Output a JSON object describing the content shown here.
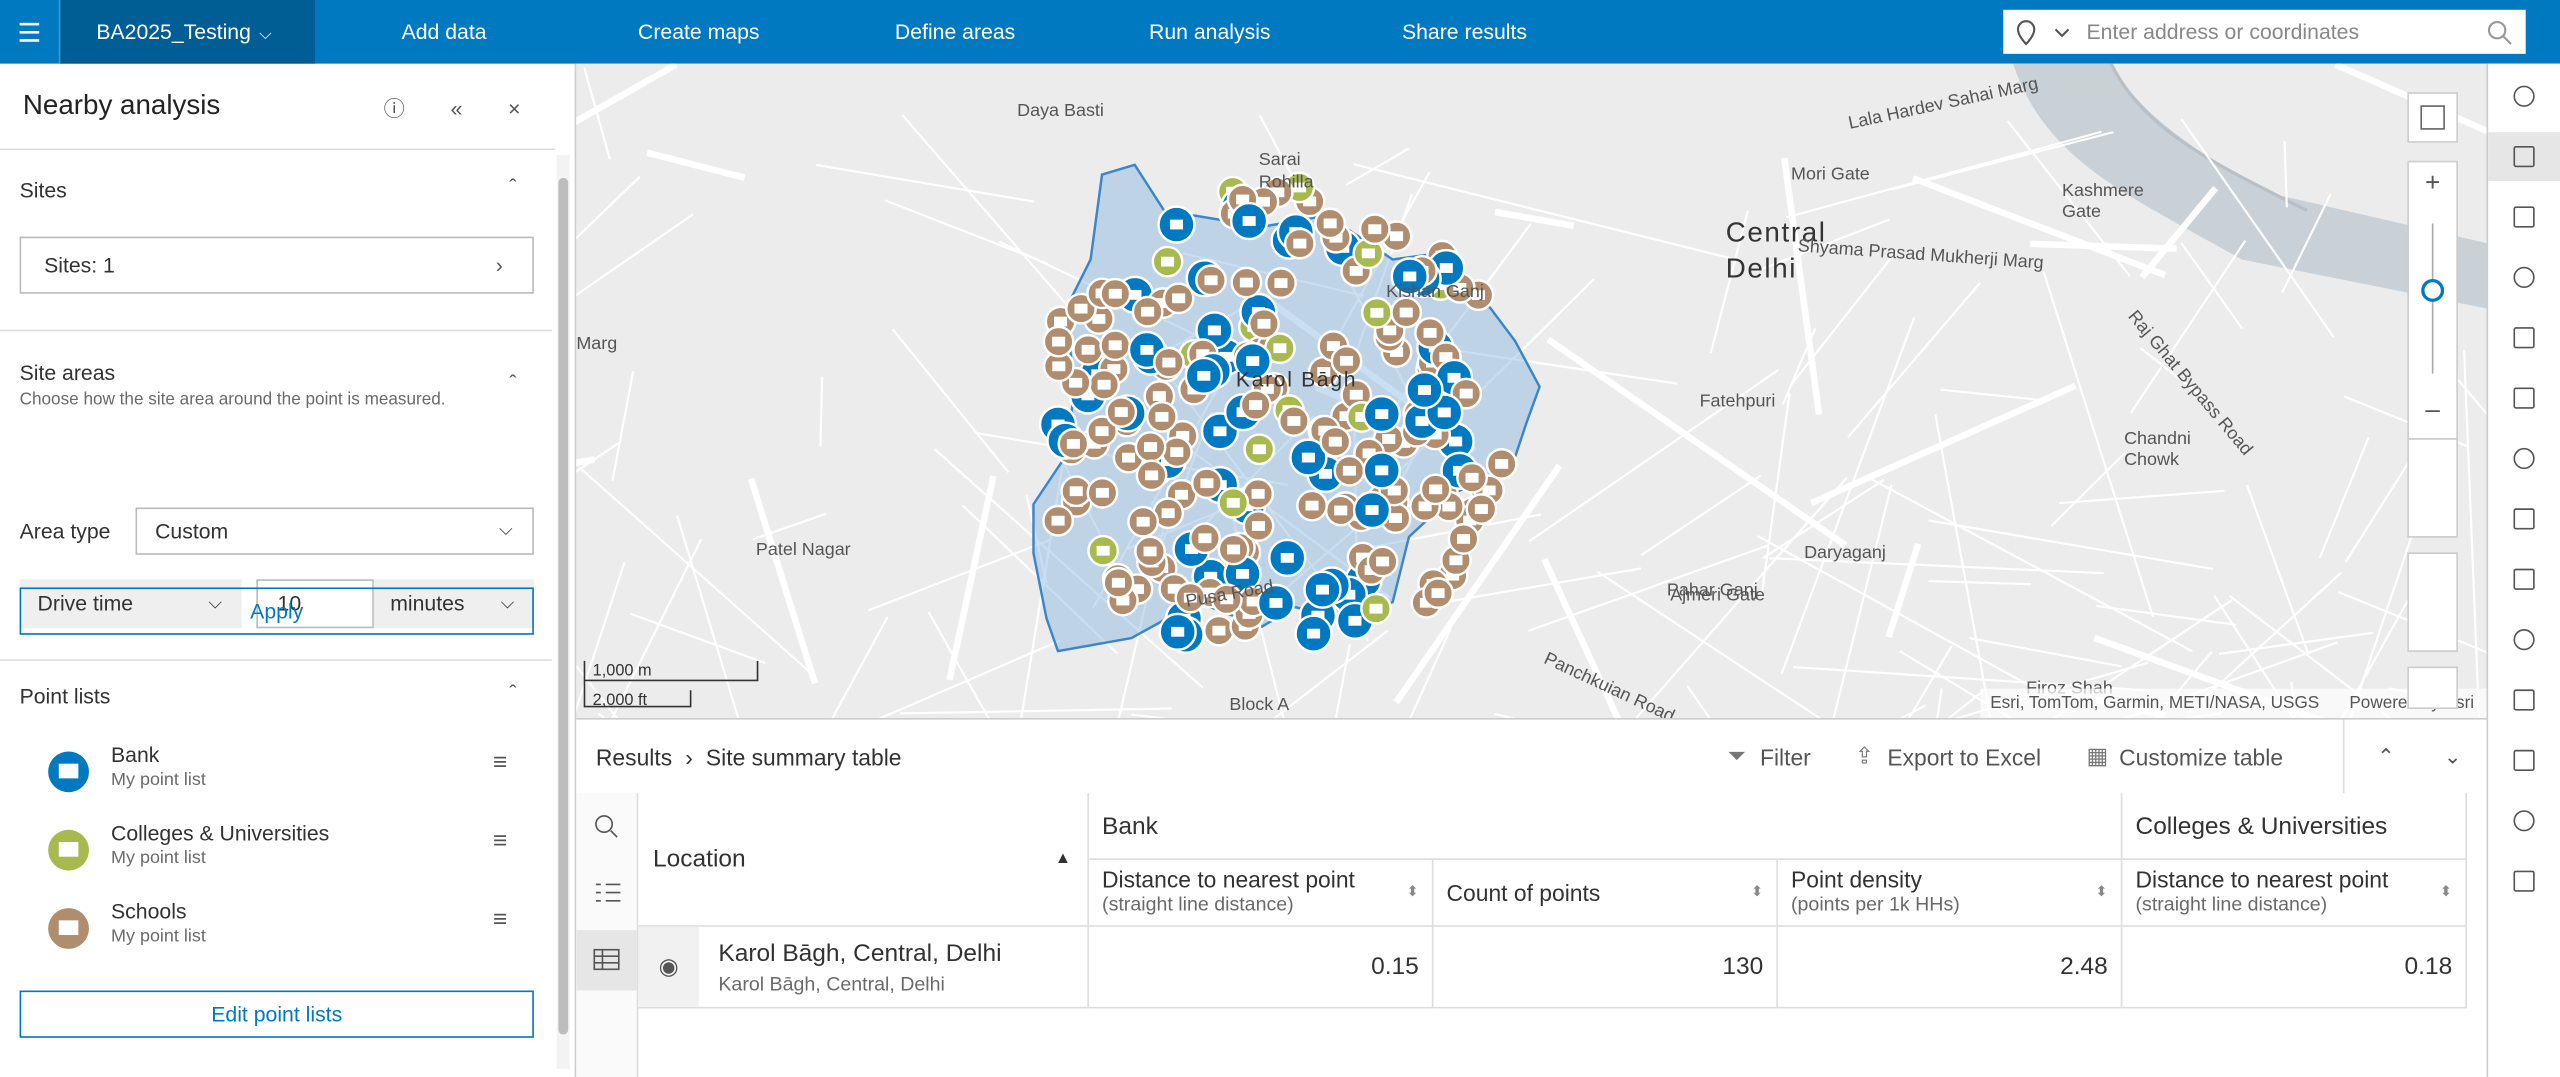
{
  "header": {
    "project": "BA2025_Testing",
    "nav": [
      "Add data",
      "Create maps",
      "Define areas",
      "Run analysis",
      "Share results"
    ],
    "search_placeholder": "Enter address or coordinates"
  },
  "panel": {
    "title": "Nearby analysis",
    "sites": {
      "heading": "Sites",
      "button": "Sites: 1"
    },
    "site_areas": {
      "heading": "Site areas",
      "description": "Choose how the site area around the point is measured.",
      "area_type_label": "Area type",
      "area_type": "Custom",
      "mode": "Drive time",
      "amount": "10",
      "unit": "minutes",
      "apply": "Apply"
    },
    "point_lists": {
      "heading": "Point lists",
      "items": [
        {
          "name": "Bank",
          "sub": "My point list"
        },
        {
          "name": "Colleges & Universities",
          "sub": "My point list"
        },
        {
          "name": "Schools",
          "sub": "My point list"
        }
      ],
      "edit": "Edit point lists"
    }
  },
  "map": {
    "labels": [
      "Daya Basti",
      "Sarai",
      "Rohilla",
      "Lala Hardev Sahai Marg",
      "Mori Gate",
      "Kashmere",
      "Gate",
      "Central",
      "Delhi",
      "Shyama Prasad Mukherji Marg",
      "Kishan Ganj",
      "Karol Bāgh",
      "Raj Ghat Bypass Road",
      "Fatehpuri",
      "Chandni",
      "Chowk",
      "Patel Nagar",
      "Pahar Ganj",
      "Ajmeri Gate",
      "Daryaganj",
      "Pusa Road",
      "Block A",
      "Panchkuian Road",
      "Firoz Shah",
      "Marg"
    ],
    "scale": [
      "1,000 m",
      "2,000 ft"
    ],
    "attribution": "Esri, TomTom, Garmin, METI/NASA, USGS",
    "powered": "Powered by Esri"
  },
  "results": {
    "breadcrumb": [
      "Results",
      "Site summary table"
    ],
    "actions": [
      "Filter",
      "Export to Excel",
      "Customize table"
    ],
    "table": {
      "location_header": "Location",
      "groups": [
        {
          "name": "Bank",
          "columns": [
            {
              "title": "Distance to nearest point",
              "sub": "(straight line distance)"
            },
            {
              "title": "Count of points"
            },
            {
              "title": "Point density",
              "sub": "(points per 1k HHs)"
            }
          ]
        },
        {
          "name": "Colleges & Universities",
          "columns": [
            {
              "title": "Distance to nearest point",
              "sub": "(straight line distance)"
            }
          ]
        }
      ],
      "rows": [
        {
          "name": "Karol Bāgh, Central, Delhi",
          "sub": "Karol Bāgh, Central, Delhi",
          "values": [
            0.15,
            130,
            2.48,
            0.18
          ]
        }
      ]
    }
  }
}
